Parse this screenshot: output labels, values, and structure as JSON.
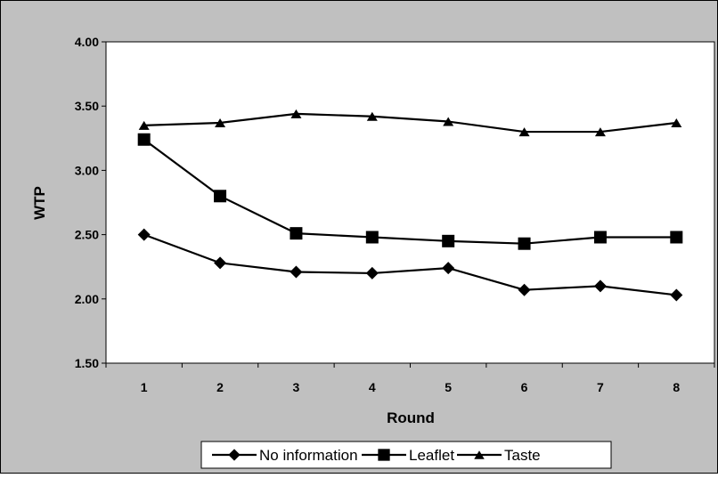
{
  "colors": {
    "chart_area": "#c0c0c0",
    "plot_area": "#ffffff",
    "line": "#000000",
    "border": "#000000"
  },
  "chart_data": {
    "type": "line",
    "title": "",
    "xlabel": "Round",
    "ylabel": "WTP",
    "categories": [
      "1",
      "2",
      "3",
      "4",
      "5",
      "6",
      "7",
      "8"
    ],
    "yticks": [
      "1.50",
      "2.00",
      "2.50",
      "3.00",
      "3.50",
      "4.00"
    ],
    "ylim": [
      1.5,
      4.0
    ],
    "grid": false,
    "legend_position": "bottom",
    "series": [
      {
        "name": "No information",
        "marker": "diamond",
        "values": [
          2.5,
          2.28,
          2.21,
          2.2,
          2.24,
          2.07,
          2.1,
          2.03
        ]
      },
      {
        "name": "Leaflet",
        "marker": "square",
        "values": [
          3.24,
          2.8,
          2.51,
          2.48,
          2.45,
          2.43,
          2.48,
          2.48
        ]
      },
      {
        "name": "Taste",
        "marker": "triangle",
        "values": [
          3.35,
          3.37,
          3.44,
          3.42,
          3.38,
          3.3,
          3.3,
          3.37
        ]
      }
    ]
  }
}
